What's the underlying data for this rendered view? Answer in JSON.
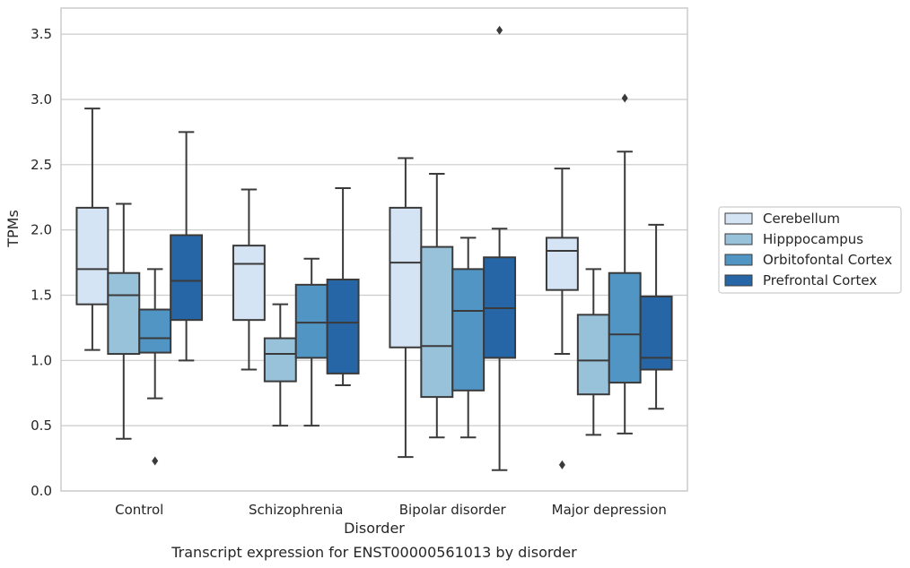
{
  "chart_data": {
    "type": "box",
    "title": "",
    "caption": "Transcript expression for ENST00000561013 by disorder",
    "xlabel": "Disorder",
    "ylabel": "TPMs",
    "ylim": [
      0,
      3.7
    ],
    "yticks": [
      "0.0",
      "0.5",
      "1.0",
      "1.5",
      "2.0",
      "2.5",
      "3.0",
      "3.5"
    ],
    "grid": "horizontal",
    "legend_position": "right",
    "categories": [
      "Control",
      "Schizophrenia",
      "Bipolar disorder",
      "Major depression"
    ],
    "series": [
      {
        "name": "Cerebellum",
        "color": "#d5e4f4",
        "boxes": [
          {
            "whislo": 1.08,
            "q1": 1.43,
            "med": 1.7,
            "q3": 2.17,
            "whishi": 2.93,
            "fliers": []
          },
          {
            "whislo": 0.93,
            "q1": 1.31,
            "med": 1.74,
            "q3": 1.88,
            "whishi": 2.31,
            "fliers": []
          },
          {
            "whislo": 0.26,
            "q1": 1.1,
            "med": 1.75,
            "q3": 2.17,
            "whishi": 2.55,
            "fliers": []
          },
          {
            "whislo": 1.05,
            "q1": 1.54,
            "med": 1.84,
            "q3": 1.94,
            "whishi": 2.47,
            "fliers": [
              0.2
            ]
          }
        ]
      },
      {
        "name": "Hipppocampus",
        "color": "#98c1da",
        "boxes": [
          {
            "whislo": 0.4,
            "q1": 1.05,
            "med": 1.5,
            "q3": 1.67,
            "whishi": 2.2,
            "fliers": []
          },
          {
            "whislo": 0.5,
            "q1": 0.84,
            "med": 1.05,
            "q3": 1.17,
            "whishi": 1.43,
            "fliers": []
          },
          {
            "whislo": 0.41,
            "q1": 0.72,
            "med": 1.11,
            "q3": 1.87,
            "whishi": 2.43,
            "fliers": []
          },
          {
            "whislo": 0.43,
            "q1": 0.74,
            "med": 1.0,
            "q3": 1.35,
            "whishi": 1.7,
            "fliers": []
          }
        ]
      },
      {
        "name": "Orbitofontal Cortex",
        "color": "#5195c4",
        "boxes": [
          {
            "whislo": 0.71,
            "q1": 1.06,
            "med": 1.17,
            "q3": 1.39,
            "whishi": 1.7,
            "fliers": [
              0.23
            ]
          },
          {
            "whislo": 0.5,
            "q1": 1.02,
            "med": 1.29,
            "q3": 1.58,
            "whishi": 1.78,
            "fliers": []
          },
          {
            "whislo": 0.41,
            "q1": 0.77,
            "med": 1.38,
            "q3": 1.7,
            "whishi": 1.94,
            "fliers": []
          },
          {
            "whislo": 0.44,
            "q1": 0.83,
            "med": 1.2,
            "q3": 1.67,
            "whishi": 2.6,
            "fliers": [
              3.01
            ]
          }
        ]
      },
      {
        "name": "Prefrontal Cortex",
        "color": "#2766a6",
        "boxes": [
          {
            "whislo": 1.0,
            "q1": 1.31,
            "med": 1.61,
            "q3": 1.96,
            "whishi": 2.75,
            "fliers": []
          },
          {
            "whislo": 0.81,
            "q1": 0.9,
            "med": 1.29,
            "q3": 1.62,
            "whishi": 2.32,
            "fliers": []
          },
          {
            "whislo": 0.16,
            "q1": 1.02,
            "med": 1.4,
            "q3": 1.79,
            "whishi": 2.01,
            "fliers": [
              3.53
            ]
          },
          {
            "whislo": 0.63,
            "q1": 0.93,
            "med": 1.02,
            "q3": 1.49,
            "whishi": 2.04,
            "fliers": []
          }
        ]
      }
    ]
  }
}
